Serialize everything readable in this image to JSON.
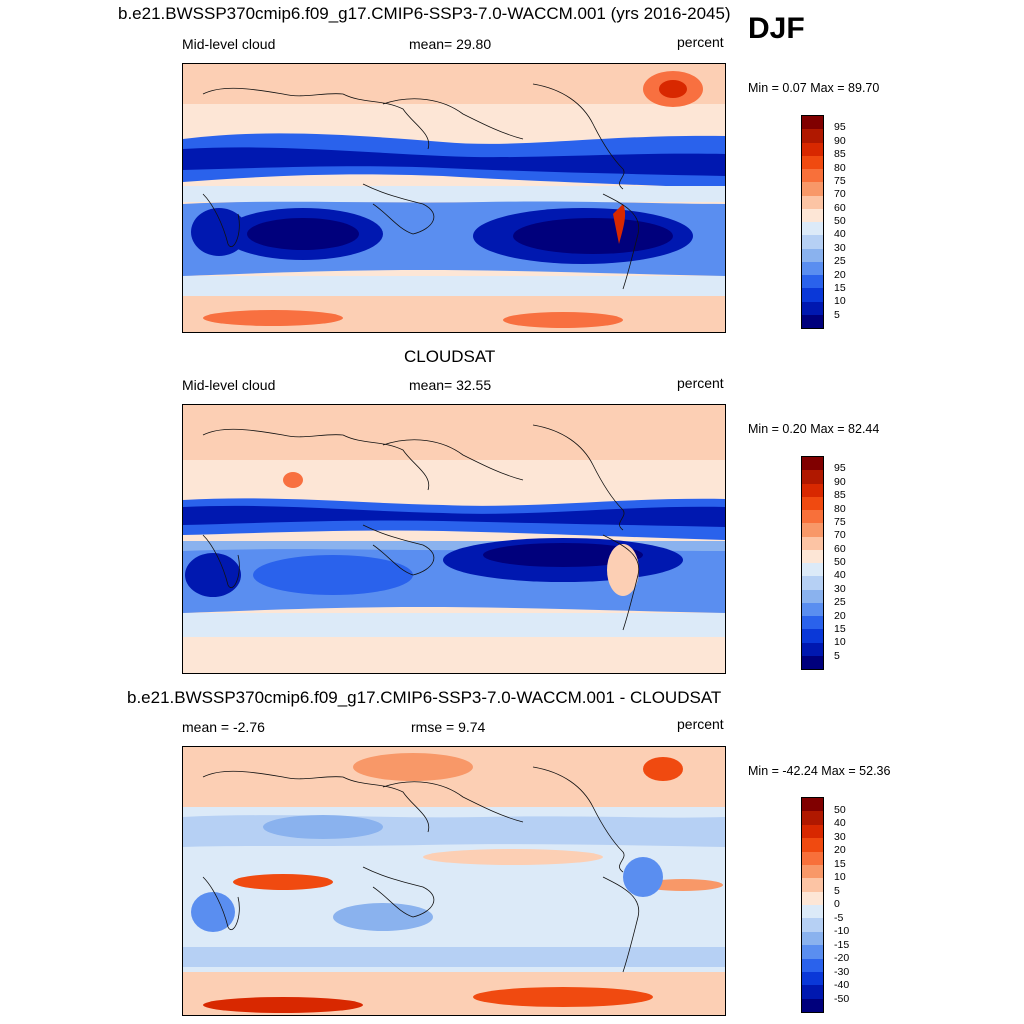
{
  "season": "DJF",
  "panels": [
    {
      "id": "model",
      "title": "b.e21.BWSSP370cmip6.f09_g17.CMIP6-SSP3-7.0-WACCM.001 (yrs 2016-2045)",
      "left_label": "Mid-level cloud",
      "center_label": "mean=  29.80",
      "units": "percent",
      "minmax": "Min =   0.07 Max =  89.70",
      "map_icon": "global-cloud-fraction-map"
    },
    {
      "id": "obs",
      "title": "CLOUDSAT",
      "left_label": "Mid-level cloud",
      "center_label": "mean=  32.55",
      "units": "percent",
      "minmax": "Min =   0.20 Max =  82.44",
      "map_icon": "global-cloud-fraction-map"
    },
    {
      "id": "diff",
      "title": "b.e21.BWSSP370cmip6.f09_g17.CMIP6-SSP3-7.0-WACCM.001 - CLOUDSAT",
      "left_label": "mean =  -2.76",
      "center_label": "rmse =    9.74",
      "units": "percent",
      "minmax": "Min = -42.24 Max =  52.36",
      "map_icon": "global-difference-map"
    }
  ],
  "colorbars": {
    "cloud": {
      "labels": [
        "95",
        "90",
        "85",
        "80",
        "75",
        "70",
        "60",
        "50",
        "40",
        "30",
        "25",
        "20",
        "15",
        "10",
        "5"
      ],
      "colors": [
        "#800000",
        "#b01800",
        "#d82800",
        "#f04a10",
        "#f8703a",
        "#f89868",
        "#fcc4a4",
        "#fde6d6",
        "#dceaf8",
        "#b6d0f4",
        "#8ab2ee",
        "#5a8ef0",
        "#2a62ec",
        "#0a38d8",
        "#0018b0",
        "#00007c"
      ]
    },
    "diff": {
      "labels": [
        "50",
        "40",
        "30",
        "20",
        "15",
        "10",
        "5",
        "0",
        "-5",
        "-10",
        "-15",
        "-20",
        "-30",
        "-40",
        "-50"
      ],
      "colors": [
        "#800000",
        "#b01800",
        "#d82800",
        "#f04a10",
        "#f8703a",
        "#f89868",
        "#fcc4a4",
        "#fde6d6",
        "#dceaf8",
        "#b6d0f4",
        "#8ab2ee",
        "#5a8ef0",
        "#2a62ec",
        "#0a38d8",
        "#0018b0",
        "#00007c"
      ]
    }
  }
}
